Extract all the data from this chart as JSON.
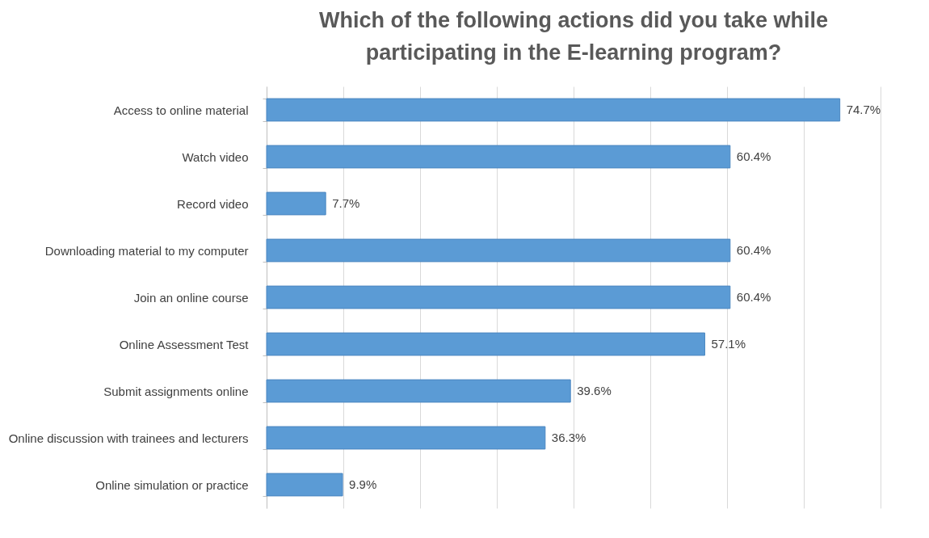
{
  "chart_data": {
    "type": "bar",
    "orientation": "horizontal",
    "title": "Which of the following actions did you take while participating in the E-learning program?",
    "categories": [
      "Access to online material",
      "Watch video",
      "Record video",
      "Downloading material to my computer",
      "Join an online course",
      "Online Assessment Test",
      "Submit assignments online",
      "Online discussion with trainees and lecturers",
      "Online simulation or practice"
    ],
    "values": [
      74.7,
      60.4,
      7.7,
      60.4,
      60.4,
      57.1,
      39.6,
      36.3,
      9.9
    ],
    "value_labels": [
      "74.7%",
      "60.4%",
      "7.7%",
      "60.4%",
      "60.4%",
      "57.1%",
      "39.6%",
      "36.3%",
      "9.9%"
    ],
    "color": "#5b9bd5",
    "xlim": [
      0,
      80
    ],
    "xticks": [
      {
        "value": 0,
        "label": null
      },
      {
        "value": 10,
        "label": null
      },
      {
        "value": 20,
        "label": null
      },
      {
        "value": 30,
        "label": null
      },
      {
        "value": 40,
        "label": null
      },
      {
        "value": 50,
        "label": null
      },
      {
        "value": 60,
        "label": null
      },
      {
        "value": 70,
        "label": null
      },
      {
        "value": 80,
        "label": null
      }
    ],
    "tick_labels": "y",
    "grid": "x"
  }
}
